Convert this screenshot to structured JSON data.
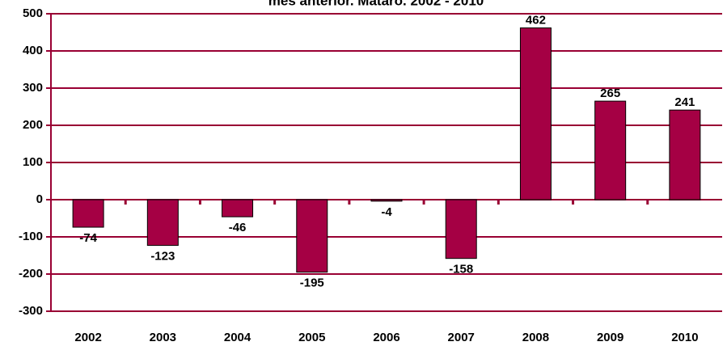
{
  "chart_data": {
    "type": "bar",
    "title": "mes anterior. Mataró. 2002 - 2010",
    "categories": [
      "2002",
      "2003",
      "2004",
      "2005",
      "2006",
      "2007",
      "2008",
      "2009",
      "2010"
    ],
    "values": [
      -74,
      -123,
      -46,
      -195,
      -4,
      -158,
      462,
      265,
      241
    ],
    "color": "#a50044",
    "grid_color": "#990033",
    "ylim": [
      -300,
      500
    ],
    "yticks": [
      -300,
      -200,
      -100,
      0,
      100,
      200,
      300,
      400,
      500
    ],
    "grid": true
  }
}
